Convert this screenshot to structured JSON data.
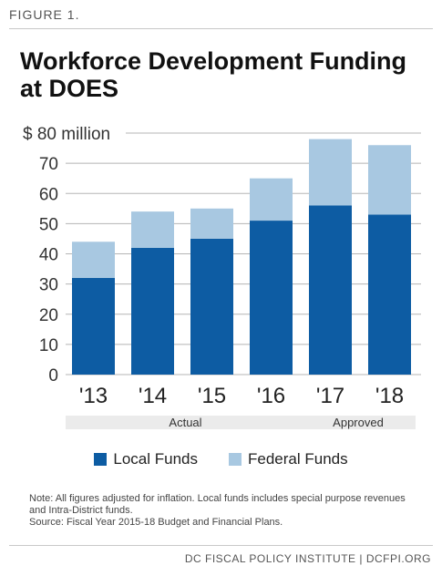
{
  "figure_label": "FIGURE 1.",
  "chart_data": {
    "type": "bar",
    "stacked": true,
    "title": "Workforce Development Funding at DOES",
    "categories": [
      "'13",
      "'14",
      "'15",
      "'16",
      "'17",
      "'18"
    ],
    "series": [
      {
        "name": "Local Funds",
        "color": "#0d5ca3",
        "values": [
          32,
          42,
          45,
          51,
          56,
          53
        ]
      },
      {
        "name": "Federal Funds",
        "color": "#a8c8e1",
        "values": [
          12,
          12,
          10,
          14,
          22,
          23
        ]
      }
    ],
    "ylim": [
      0,
      80
    ],
    "yticks": [
      0,
      10,
      20,
      30,
      40,
      50,
      60,
      70,
      80
    ],
    "ytick_top_label": "$ 80 million",
    "grid": true,
    "legend_position": "bottom",
    "groups": [
      {
        "label": "Actual",
        "categories": [
          "'13",
          "'14",
          "'15",
          "'16"
        ]
      },
      {
        "label": "Approved",
        "categories": [
          "'17",
          "'18"
        ]
      }
    ],
    "group_band_color": "#ebebeb"
  },
  "note": {
    "line1": "Note: All figures adjusted for inflation. Local funds includes special purpose revenues and Intra-District funds.",
    "line2": "Source: Fiscal Year 2015-18 Budget and Financial Plans."
  },
  "footer": "DC FISCAL POLICY INSTITUTE | DCFPI.ORG"
}
